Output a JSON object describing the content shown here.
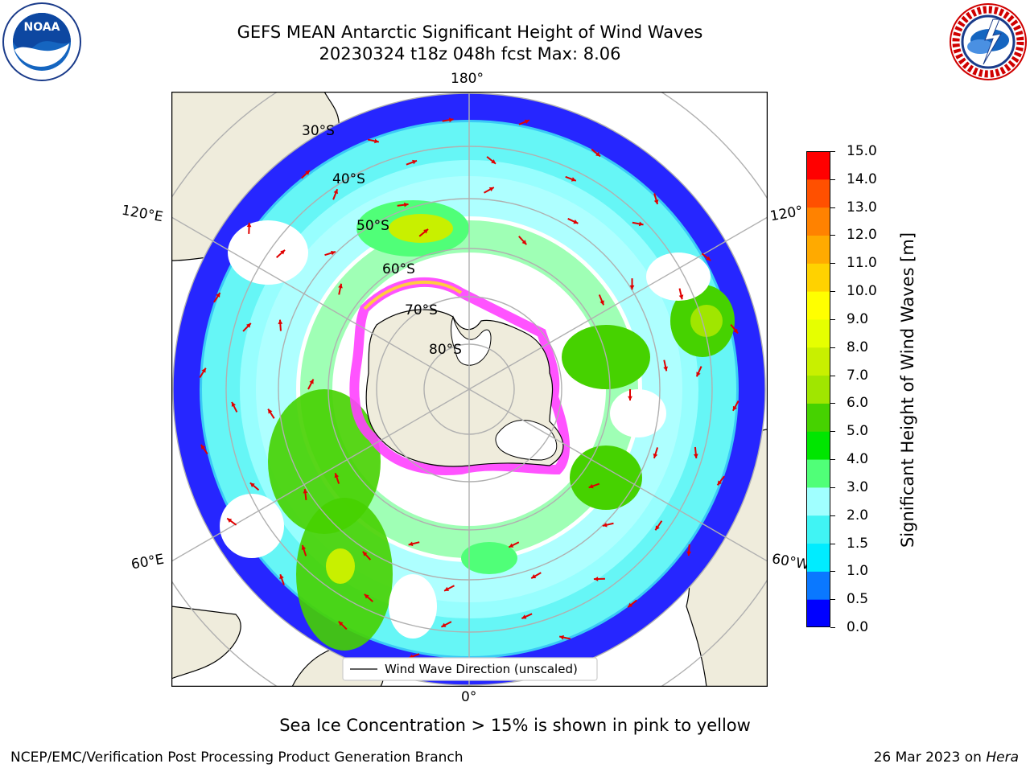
{
  "header": {
    "title_line1": "GEFS MEAN Antarctic Significant Height of Wind Waves",
    "title_line2": "20230324 t18z 048h fcst   Max: 8.06"
  },
  "logos": {
    "left": "noaa-logo",
    "right": "national-weather-service-logo",
    "left_text": "NOAA",
    "right_text": "NATIONAL WEATHER SERVICE"
  },
  "map": {
    "projection": "south-polar-stereographic",
    "lon_labels": {
      "top": "180°",
      "bottom": "0°",
      "upper_left": "120°E",
      "lower_left": "60°E",
      "upper_right": "120°",
      "lower_right": "60°W"
    },
    "lat_labels": [
      "30°S",
      "40°S",
      "50°S",
      "60°S",
      "70°S",
      "80°S"
    ],
    "legend": "Wind Wave Direction (unscaled)",
    "colors": {
      "land": "#efecdc",
      "ocean_calm": "#ffffff",
      "arrow": "#e00000",
      "grid": "#b0b0b0",
      "ice_pink": "#ff40ff",
      "ice_yellow": "#ffcc40"
    }
  },
  "colorbar": {
    "label": "Significant Height of Wind Waves [m]",
    "ticks": [
      "0.0",
      "0.5",
      "1.0",
      "1.5",
      "2.0",
      "3.0",
      "4.0",
      "5.0",
      "6.0",
      "7.0",
      "8.0",
      "9.0",
      "10.0",
      "11.0",
      "12.0",
      "13.0",
      "14.0",
      "15.0"
    ],
    "colors": [
      "#0000ff",
      "#0a78ff",
      "#00ecff",
      "#40f4f4",
      "#a0ffff",
      "#50ff78",
      "#00e600",
      "#46d200",
      "#a0e600",
      "#c8f000",
      "#e6ff00",
      "#ffff00",
      "#ffd200",
      "#ffaa00",
      "#ff8200",
      "#ff5000",
      "#ff0000"
    ]
  },
  "ice_note": "Sea Ice Concentration > 15% is shown in pink to yellow",
  "footer": {
    "left": "NCEP/EMC/Verification Post Processing Product Generation Branch",
    "right_date": "26 Mar 2023 on ",
    "right_host": "Hera"
  }
}
